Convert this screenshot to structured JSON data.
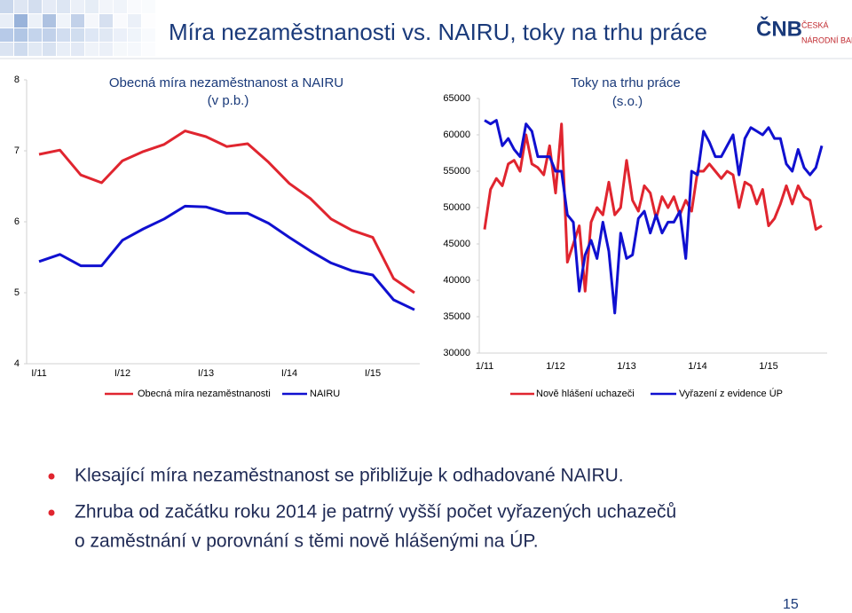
{
  "slide": {
    "title": "Míra nezaměstnanosti vs. NAIRU, toky na trhu práce",
    "logo": {
      "mark": "ČNB",
      "line1": "ČESKÁ",
      "line2": "NÁRODNÍ BANKA"
    },
    "bullets": [
      [
        "Klesající míra nezaměstnanost se přibližuje k odhadované NAIRU."
      ],
      [
        "Zhruba od začátku roku 2014 je patrný vyšší počet vyřazených uchazečů",
        "o zaměstnání v porovnání s těmi nově hlášenými na ÚP."
      ]
    ],
    "page_number": "15"
  },
  "chart_data": [
    {
      "type": "line",
      "title": "Obecná míra nezaměstnanost a NAIRU",
      "subtitle": "(v p.b.)",
      "categories": [
        "I/11",
        null,
        null,
        null,
        "I/12",
        null,
        null,
        null,
        "I/13",
        null,
        null,
        null,
        "I/14",
        null,
        null,
        null,
        "I/15",
        null,
        null
      ],
      "series": [
        {
          "name": "Obecná míra nezaměstnanosti",
          "color": "#e0252f",
          "values": [
            6.95,
            7.01,
            6.66,
            6.55,
            6.86,
            6.99,
            7.09,
            7.28,
            7.2,
            7.06,
            7.1,
            6.84,
            6.54,
            6.33,
            6.04,
            5.88,
            5.78,
            5.2,
            5.0
          ]
        },
        {
          "name": "NAIRU",
          "color": "#1010d0",
          "values": [
            5.44,
            5.54,
            5.38,
            5.38,
            5.74,
            5.9,
            6.04,
            6.22,
            6.21,
            6.12,
            6.12,
            5.98,
            5.78,
            5.59,
            5.42,
            5.31,
            5.25,
            4.9,
            4.76
          ]
        }
      ],
      "ylim": [
        4,
        8
      ],
      "yticks": [
        4,
        5,
        6,
        7,
        8
      ],
      "grid": false
    },
    {
      "type": "line",
      "title": "Toky na trhu práce",
      "subtitle": "(s.o.)",
      "categories": [
        "1/11",
        null,
        null,
        null,
        null,
        null,
        null,
        null,
        null,
        null,
        null,
        null,
        "1/12",
        null,
        null,
        null,
        null,
        null,
        null,
        null,
        null,
        null,
        null,
        null,
        "1/13",
        null,
        null,
        null,
        null,
        null,
        null,
        null,
        null,
        null,
        null,
        null,
        "1/14",
        null,
        null,
        null,
        null,
        null,
        null,
        null,
        null,
        null,
        null,
        null,
        "1/15",
        null,
        null,
        null,
        null,
        null,
        null,
        null,
        null,
        null
      ],
      "series": [
        {
          "name": "Nově hlášení uchazeči",
          "color": "#e0252f",
          "values": [
            47000,
            52500,
            54000,
            53000,
            56000,
            56500,
            55000,
            60000,
            56000,
            55500,
            54500,
            58500,
            52000,
            61500,
            42500,
            45000,
            47500,
            38500,
            48000,
            50000,
            49000,
            53500,
            49000,
            50000,
            56500,
            51000,
            49500,
            53000,
            52000,
            48500,
            51500,
            50000,
            51500,
            49000,
            51000,
            49500,
            55000,
            55000,
            56000,
            55000,
            54000,
            55000,
            54500,
            50000,
            53500,
            53000,
            50500,
            52500,
            47500,
            48500,
            50500,
            53000,
            50500,
            53000,
            51500,
            51000,
            47000,
            47500
          ]
        },
        {
          "name": "Vyřazení z evidence ÚP",
          "color": "#1010d0",
          "values": [
            62000,
            61500,
            62000,
            58500,
            59500,
            58000,
            57000,
            61500,
            60500,
            57000,
            57000,
            57000,
            55000,
            55000,
            49000,
            48000,
            38500,
            43500,
            45500,
            43000,
            48000,
            44000,
            35500,
            46500,
            43000,
            43500,
            48500,
            49500,
            46500,
            49000,
            46500,
            48000,
            48000,
            49500,
            43000,
            55000,
            54500,
            60500,
            59000,
            57000,
            57000,
            58500,
            60000,
            54500,
            59500,
            61000,
            60500,
            60000,
            61000,
            59500,
            59500,
            56000,
            55000,
            58000,
            55500,
            54500,
            55500,
            58500
          ]
        }
      ],
      "ylim": [
        30000,
        65000
      ],
      "yticks": [
        30000,
        35000,
        40000,
        45000,
        50000,
        55000,
        60000,
        65000
      ],
      "grid": false
    }
  ]
}
